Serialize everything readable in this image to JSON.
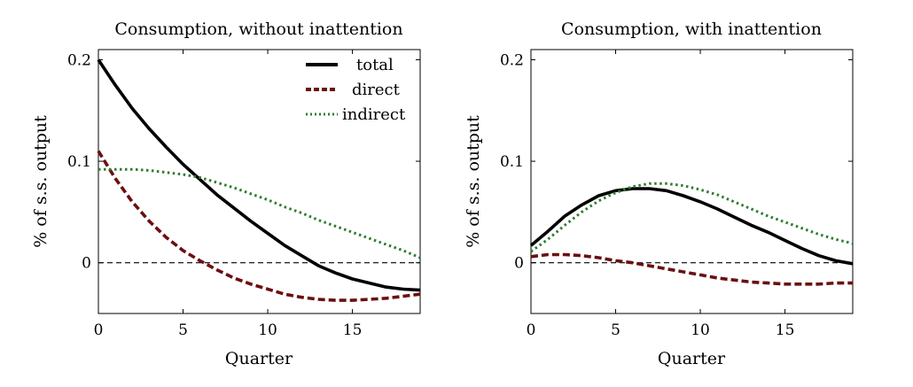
{
  "charts": [
    {
      "type": "line",
      "title": "Consumption, without inattention",
      "xlabel": "Quarter",
      "ylabel": "% of s.s. output",
      "xlim": [
        0,
        19
      ],
      "ylim": [
        -0.05,
        0.21
      ],
      "xticks": [
        0,
        5,
        10,
        15
      ],
      "xtick_labels": [
        "0",
        "5",
        "10",
        "15"
      ],
      "yticks": [
        0,
        0.1,
        0.2
      ],
      "ytick_labels": [
        "0",
        "0.1",
        "0.2"
      ],
      "zero_line": true,
      "legend": {
        "position": "top-right",
        "show": true
      },
      "x": [
        0,
        1,
        2,
        3,
        4,
        5,
        6,
        7,
        8,
        9,
        10,
        11,
        12,
        13,
        14,
        15,
        16,
        17,
        18,
        19
      ],
      "series": [
        {
          "name": "total",
          "color": "#000000",
          "style": "solid",
          "values": [
            0.2,
            0.175,
            0.152,
            0.132,
            0.114,
            0.097,
            0.082,
            0.067,
            0.054,
            0.041,
            0.029,
            0.017,
            0.007,
            -0.003,
            -0.01,
            -0.016,
            -0.02,
            -0.024,
            -0.026,
            -0.027
          ]
        },
        {
          "name": "direct",
          "color": "#6b0f0f",
          "style": "dashed",
          "values": [
            0.11,
            0.083,
            0.06,
            0.041,
            0.025,
            0.012,
            0.002,
            -0.007,
            -0.015,
            -0.021,
            -0.026,
            -0.031,
            -0.034,
            -0.036,
            -0.037,
            -0.037,
            -0.036,
            -0.035,
            -0.033,
            -0.031
          ]
        },
        {
          "name": "indirect",
          "color": "#2e7d32",
          "style": "dotted",
          "values": [
            0.092,
            0.092,
            0.092,
            0.091,
            0.089,
            0.087,
            0.084,
            0.079,
            0.074,
            0.068,
            0.062,
            0.055,
            0.049,
            0.042,
            0.036,
            0.03,
            0.024,
            0.018,
            0.012,
            0.005
          ]
        }
      ]
    },
    {
      "type": "line",
      "title": "Consumption, with inattention",
      "xlabel": "Quarter",
      "ylabel": "% of s.s. output",
      "xlim": [
        0,
        19
      ],
      "ylim": [
        -0.05,
        0.21
      ],
      "xticks": [
        0,
        5,
        10,
        15
      ],
      "xtick_labels": [
        "0",
        "5",
        "10",
        "15"
      ],
      "yticks": [
        0,
        0.1,
        0.2
      ],
      "ytick_labels": [
        "0",
        "0.1",
        "0.2"
      ],
      "zero_line": true,
      "legend": {
        "show": false
      },
      "x": [
        0,
        1,
        2,
        3,
        4,
        5,
        6,
        7,
        8,
        9,
        10,
        11,
        12,
        13,
        14,
        15,
        16,
        17,
        18,
        19
      ],
      "series": [
        {
          "name": "total",
          "color": "#000000",
          "style": "solid",
          "values": [
            0.017,
            0.031,
            0.046,
            0.057,
            0.066,
            0.071,
            0.073,
            0.073,
            0.071,
            0.066,
            0.06,
            0.053,
            0.045,
            0.037,
            0.03,
            0.022,
            0.014,
            0.007,
            0.002,
            -0.001
          ]
        },
        {
          "name": "direct",
          "color": "#6b0f0f",
          "style": "dashed",
          "values": [
            0.006,
            0.008,
            0.008,
            0.007,
            0.005,
            0.002,
            0.0,
            -0.003,
            -0.006,
            -0.009,
            -0.012,
            -0.015,
            -0.017,
            -0.019,
            -0.02,
            -0.021,
            -0.021,
            -0.021,
            -0.02,
            -0.02
          ]
        },
        {
          "name": "indirect",
          "color": "#2e7d32",
          "style": "dotted",
          "values": [
            0.011,
            0.023,
            0.037,
            0.05,
            0.061,
            0.069,
            0.075,
            0.078,
            0.078,
            0.076,
            0.072,
            0.067,
            0.06,
            0.053,
            0.046,
            0.04,
            0.034,
            0.028,
            0.023,
            0.019
          ]
        }
      ]
    }
  ]
}
